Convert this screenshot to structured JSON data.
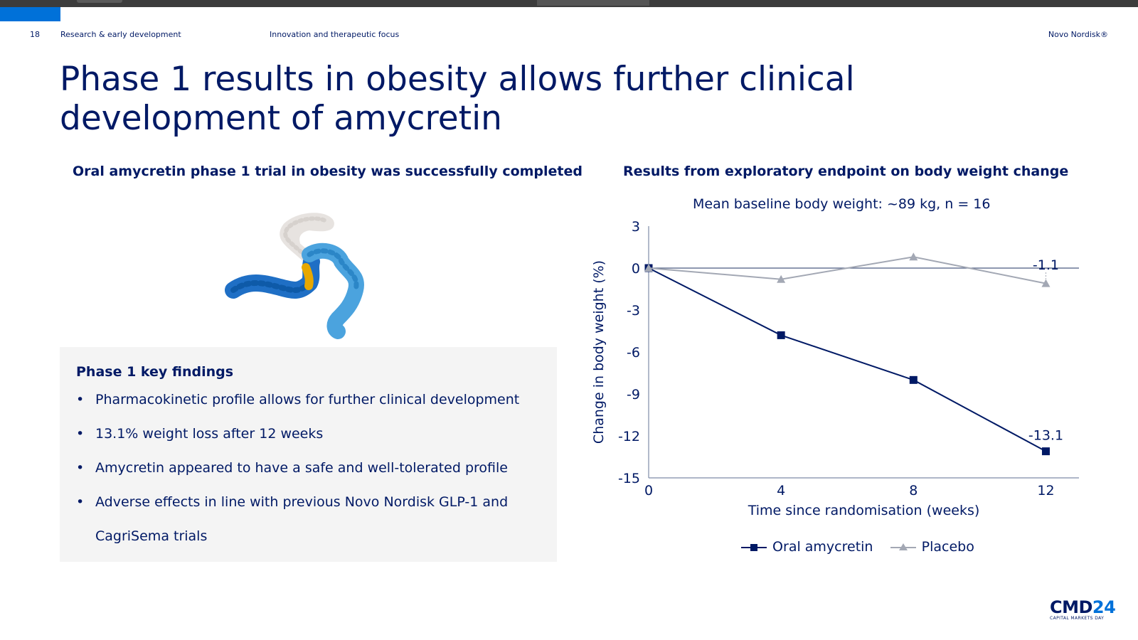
{
  "header": {
    "page_number": "18",
    "section": "Research & early development",
    "subsection": "Innovation and therapeutic focus",
    "brand": "Novo Nordisk®"
  },
  "title": "Phase 1 results in obesity allows further clinical development of amycretin",
  "left": {
    "subtitle": "Oral amycretin phase 1 trial in obesity was successfully completed",
    "findings_title": "Phase 1 key findings",
    "bullets": [
      "Pharmacokinetic profile allows for further clinical development",
      "13.1% weight loss after 12 weeks",
      "Amycretin appeared to have a safe and well-tolerated profile",
      "Adverse effects in line with previous Novo Nordisk GLP-1 and",
      "CagriSema trials"
    ]
  },
  "right": {
    "subtitle": "Results from exploratory endpoint on body weight change",
    "note": "Mean baseline body weight: ~89 kg, n = 16"
  },
  "chart_data": {
    "type": "line",
    "title": "",
    "xlabel": "Time since randomisation (weeks)",
    "ylabel": "Change in body weight (%)",
    "x": [
      0,
      4,
      8,
      12
    ],
    "xticks": [
      "0",
      "4",
      "8",
      "12"
    ],
    "yticks": [
      "3",
      "0",
      "-3",
      "-6",
      "-9",
      "-12",
      "-15"
    ],
    "ylim": [
      -15,
      3
    ],
    "xlim": [
      0,
      13
    ],
    "grid": false,
    "legend_position": "bottom",
    "series": [
      {
        "name": "Oral amycretin",
        "values": [
          0,
          -4.8,
          -8.0,
          -13.1
        ],
        "color": "#001965",
        "marker": "square",
        "end_label": "-13.1"
      },
      {
        "name": "Placebo",
        "values": [
          0,
          -0.8,
          0.8,
          -1.1
        ],
        "color": "#a3a8b4",
        "marker": "triangle",
        "end_label": "-1.1"
      }
    ]
  },
  "logo": {
    "text_dark": "CMD",
    "text_blue": "24",
    "tagline": "CAPITAL MARKETS DAY"
  },
  "colors": {
    "navy": "#001965",
    "accent_blue": "#0071d9",
    "placebo_grey": "#a3a8b4",
    "panel_bg": "#f4f4f4"
  }
}
